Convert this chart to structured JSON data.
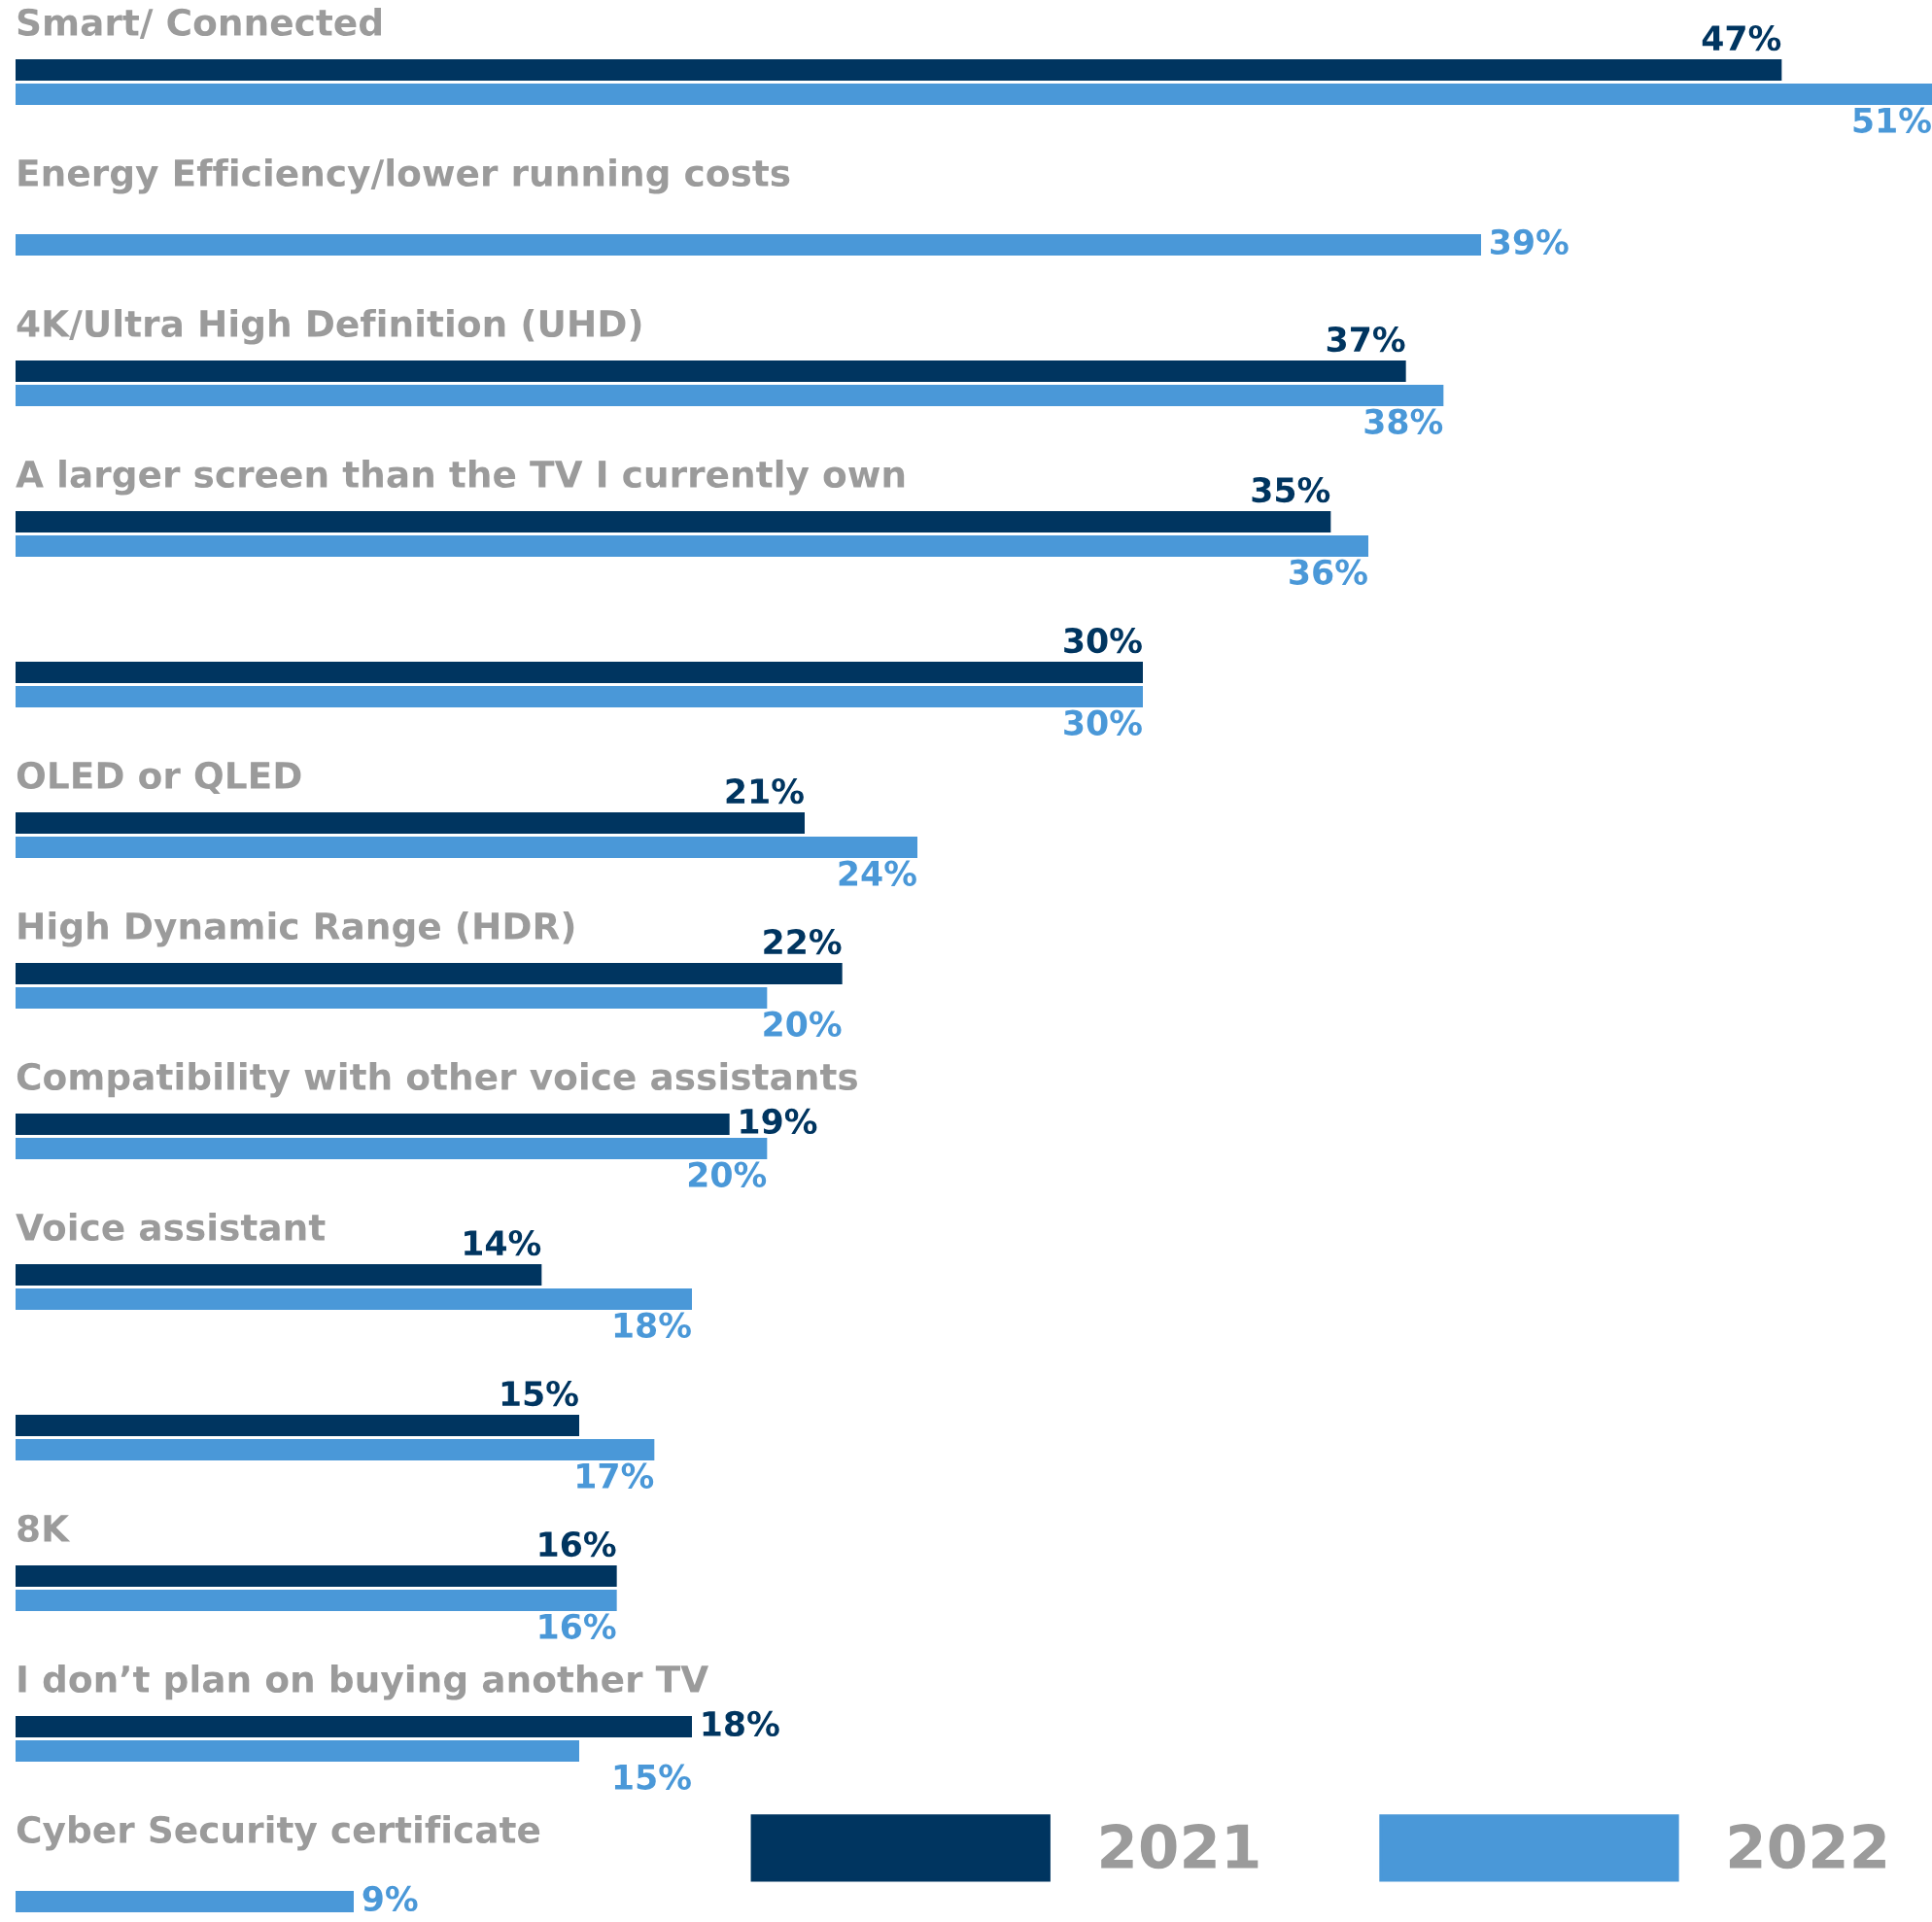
{
  "chart_data": {
    "type": "bar",
    "orientation": "horizontal",
    "legend": "bottom right",
    "categories": [
      "Smart/ Connected",
      "Energy Efficiency/lower running costs",
      "4K/Ultra High Definition (UHD)",
      "A larger screen than the TV I currently own",
      null,
      "OLED or QLED",
      "High Dynamic Range (HDR)",
      "Compatibility with other voice assistants",
      "Voice assistant",
      null,
      "8K",
      "I don’t plan on buying another TV",
      "Cyber Security certificate"
    ],
    "series": [
      {
        "name": "2021",
        "color": "#003560",
        "values": [
          47,
          null,
          37,
          35,
          30,
          21,
          22,
          19,
          14,
          15,
          16,
          18,
          null
        ],
        "value_labels": [
          "47%",
          null,
          "37%",
          "35%",
          "30%",
          "21%",
          "22%",
          "19%",
          "14%",
          "15%",
          "16%",
          "18%",
          null
        ]
      },
      {
        "name": "2022",
        "color": "#4a98d8",
        "values": [
          51,
          39,
          38,
          36,
          30,
          24,
          20,
          20,
          18,
          17,
          16,
          15,
          9
        ],
        "value_labels": [
          "51%",
          "39%",
          "38%",
          "36%",
          "30%",
          "24%",
          "20%",
          "20%",
          "18%",
          "17%",
          "16%",
          "15%",
          "9%"
        ]
      }
    ]
  }
}
